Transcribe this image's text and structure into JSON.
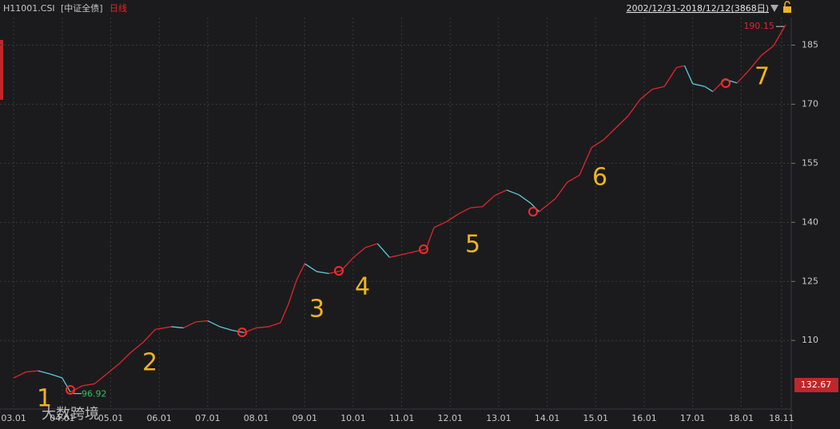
{
  "chart_data": {
    "type": "line",
    "title": "H11001.CSI",
    "subtitle": "[中证全债]",
    "period": "日线",
    "range_label": "2002/12/31-2018/12/12(3868日)",
    "annotations": [
      "1",
      "2",
      "3",
      "4",
      "5",
      "6",
      "7"
    ],
    "cursor_label": "132.67",
    "watermark": "大数跨境",
    "x": [
      "2003-01",
      "2003-04",
      "2003-07",
      "2003-10",
      "2004-01",
      "2004-03",
      "2004-06",
      "2004-09",
      "2004-12",
      "2005-03",
      "2005-06",
      "2005-09",
      "2005-12",
      "2006-04",
      "2006-07",
      "2006-10",
      "2007-01",
      "2007-04",
      "2007-07",
      "2007-10",
      "2008-01",
      "2008-04",
      "2008-07",
      "2008-09",
      "2008-11",
      "2009-01",
      "2009-04",
      "2009-07",
      "2009-10",
      "2010-01",
      "2010-04",
      "2010-07",
      "2010-10",
      "2011-01",
      "2011-04",
      "2011-07",
      "2011-09",
      "2011-12",
      "2012-03",
      "2012-06",
      "2012-09",
      "2012-12",
      "2013-03",
      "2013-06",
      "2013-09",
      "2013-11",
      "2014-03",
      "2014-06",
      "2014-09",
      "2014-12",
      "2015-03",
      "2015-06",
      "2015-09",
      "2015-12",
      "2016-03",
      "2016-06",
      "2016-09",
      "2016-11",
      "2017-01",
      "2017-04",
      "2017-06",
      "2017-09",
      "2017-12",
      "2018-03",
      "2018-06",
      "2018-09",
      "2018-12"
    ],
    "series": [
      {
        "name": "H11001.CSI",
        "up_color": "#e0262c",
        "down_color": "#5fc8d8",
        "values": [
          100.5,
          102,
          102.3,
          101.5,
          100.5,
          96.92,
          98.5,
          99,
          101.5,
          104,
          107,
          109.5,
          112.8,
          113.5,
          113.2,
          114.7,
          115,
          113.5,
          112.6,
          112,
          113.2,
          113.5,
          114.5,
          119.3,
          125.4,
          129.5,
          127.5,
          127,
          127.7,
          131,
          133.6,
          134.6,
          131.1,
          131.8,
          132.5,
          133.2,
          138.7,
          140.1,
          142.1,
          143.7,
          144,
          146.8,
          148.2,
          147,
          144.8,
          142.7,
          146,
          150.2,
          152,
          159,
          161,
          164,
          167,
          171.2,
          173.8,
          174.5,
          179.3,
          179.8,
          175.2,
          174.5,
          173.2,
          176.3,
          175.4,
          178.7,
          182.4,
          184.8,
          190.15
        ]
      }
    ],
    "xlim": [
      "2002-10",
      "2019-01"
    ],
    "xticks": [
      {
        "value": "2003-01",
        "label": "03.01"
      },
      {
        "value": "2004-01",
        "label": "04.01"
      },
      {
        "value": "2005-01",
        "label": "05.01"
      },
      {
        "value": "2006-01",
        "label": "06.01"
      },
      {
        "value": "2007-01",
        "label": "07.01"
      },
      {
        "value": "2008-01",
        "label": "08.01"
      },
      {
        "value": "2009-01",
        "label": "09.01"
      },
      {
        "value": "2010-01",
        "label": "10.01"
      },
      {
        "value": "2011-01",
        "label": "11.01"
      },
      {
        "value": "2012-01",
        "label": "12.01"
      },
      {
        "value": "2013-01",
        "label": "13.01"
      },
      {
        "value": "2014-01",
        "label": "14.01"
      },
      {
        "value": "2015-01",
        "label": "15.01"
      },
      {
        "value": "2016-01",
        "label": "16.01"
      },
      {
        "value": "2017-01",
        "label": "17.01"
      },
      {
        "value": "2018-01",
        "label": "18.01"
      },
      {
        "value": "2018-11",
        "label": "18.11"
      }
    ],
    "ylim": [
      93,
      192
    ],
    "yticks": [
      110,
      125,
      140,
      155,
      170,
      185
    ],
    "grid": true
  }
}
